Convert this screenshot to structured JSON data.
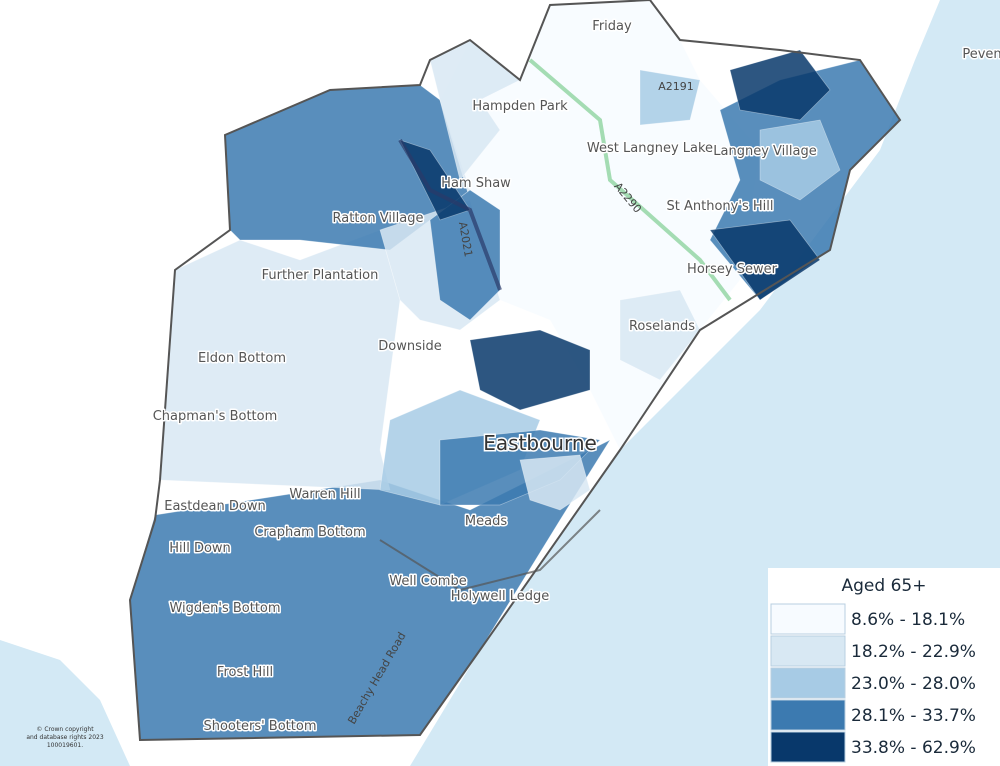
{
  "legend": {
    "title": "Aged 65+",
    "items": [
      {
        "label": "8.6% - 18.1%",
        "color": "#f7fbff"
      },
      {
        "label": "18.2% - 22.9%",
        "color": "#d8e8f3"
      },
      {
        "label": "23.0% - 28.0%",
        "color": "#a7cbe5"
      },
      {
        "label": "28.1% - 33.7%",
        "color": "#3c7ab0"
      },
      {
        "label": "33.8% - 62.9%",
        "color": "#08386b"
      }
    ]
  },
  "places": [
    "Friday",
    "Hampden Park",
    "West Langney Lake",
    "Langney Village",
    "St Anthony's Hill",
    "Ham Shaw",
    "Ratton Village",
    "Further Plantation",
    "Horsey Sewer",
    "Roselands",
    "Downside",
    "Eldon Bottom",
    "Chapman's Bottom",
    "Eastdean Down",
    "Warren Hill",
    "Meads",
    "Crapham Bottom",
    "Hill Down",
    "Well Combe",
    "Holywell Ledge",
    "Wigden's Bottom",
    "Frost Hill",
    "Shooters' Bottom",
    "Peven"
  ],
  "town": "Eastbourne",
  "roads": [
    "A2290",
    "A2021",
    "A2191",
    "Beachy Head Road"
  ],
  "copyright": [
    "© Crown copyright",
    "and database rights 2023",
    "100019601."
  ]
}
